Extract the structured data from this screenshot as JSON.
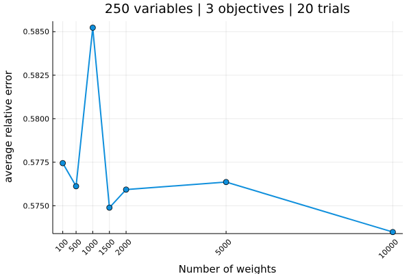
{
  "chart_data": {
    "type": "line",
    "title": "250 variables | 3 objectives | 20 trials",
    "xlabel": "Number of weights",
    "ylabel": "average relative error",
    "x_ticks": [
      100,
      500,
      1000,
      1500,
      2000,
      5000,
      10000
    ],
    "x_tick_labels": [
      "100",
      "500",
      "1000",
      "1500",
      "2000",
      "5000",
      "10000"
    ],
    "y_ticks": [
      0.575,
      0.5775,
      0.58,
      0.5825,
      0.585
    ],
    "y_tick_labels": [
      "0.5750",
      "0.5775",
      "0.5800",
      "0.5825",
      "0.5850"
    ],
    "xlim": [
      -200,
      10300
    ],
    "ylim": [
      0.5734,
      0.5856
    ],
    "grid": true,
    "legend": "none",
    "series_color": "#0f8fdc",
    "x": [
      100,
      500,
      1000,
      1500,
      2000,
      5000,
      10000
    ],
    "y": [
      0.57745,
      0.57612,
      0.58523,
      0.57489,
      0.57593,
      0.57636,
      0.57349
    ]
  }
}
